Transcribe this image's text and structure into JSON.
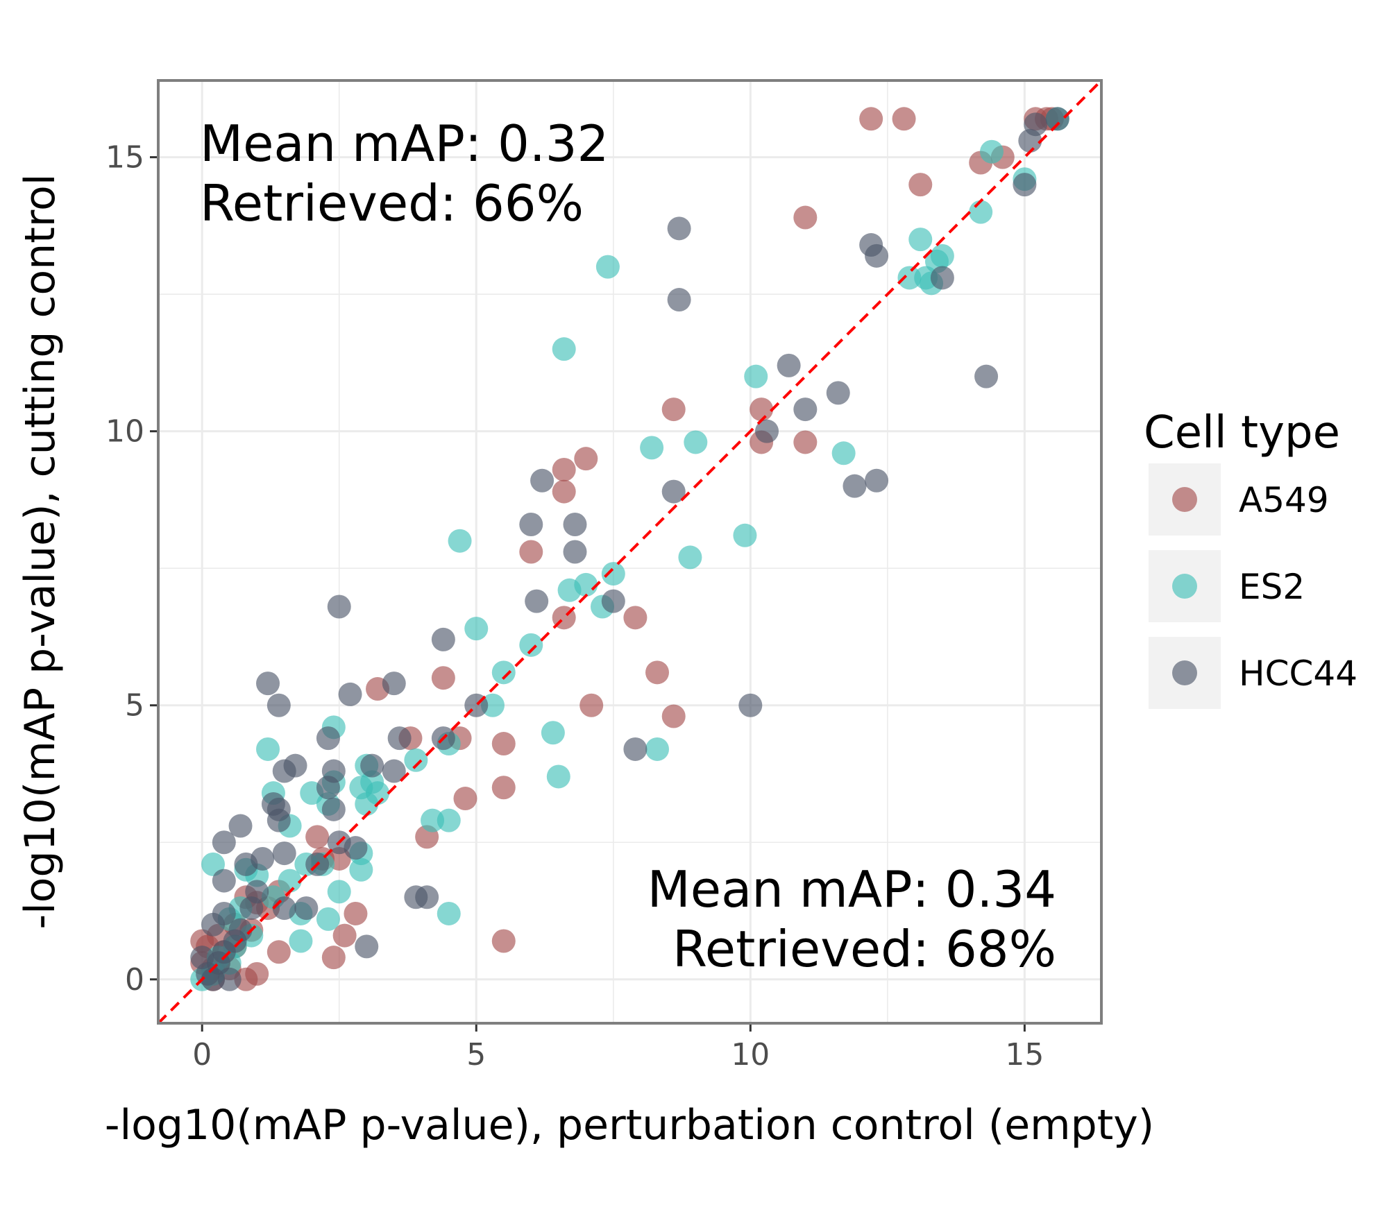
{
  "chart_data": {
    "type": "scatter",
    "xlabel": "-log10(mAP p-value), perturbation control (empty)",
    "ylabel": "-log10(mAP p-value), cutting control",
    "xlim": [
      -0.8,
      16.4
    ],
    "ylim": [
      -0.8,
      16.4
    ],
    "x_ticks": [
      0,
      5,
      10,
      15
    ],
    "y_ticks": [
      0,
      5,
      10,
      15
    ],
    "grid": true,
    "reference_line": {
      "type": "identity",
      "color": "#ff0000",
      "style": "dashed"
    },
    "annotations": {
      "top_left": {
        "line1": "Mean mAP: 0.32",
        "line2": "Retrieved: 66%"
      },
      "bottom_right": {
        "line1": "Mean mAP: 0.34",
        "line2": "Retrieved: 68%"
      }
    },
    "legend": {
      "title": "Cell type",
      "position": "right"
    },
    "series": [
      {
        "name": "A549",
        "color": "#a34a4a",
        "points": [
          [
            12.2,
            15.7
          ],
          [
            12.8,
            15.7
          ],
          [
            15.2,
            15.7
          ],
          [
            15.4,
            15.7
          ],
          [
            15.5,
            15.7
          ],
          [
            13.1,
            14.5
          ],
          [
            14.2,
            14.9
          ],
          [
            14.6,
            15.0
          ],
          [
            11.0,
            13.9
          ],
          [
            8.6,
            10.4
          ],
          [
            10.2,
            10.4
          ],
          [
            10.2,
            9.8
          ],
          [
            11.0,
            9.8
          ],
          [
            7.0,
            9.5
          ],
          [
            6.6,
            9.3
          ],
          [
            6.6,
            8.9
          ],
          [
            6.0,
            7.8
          ],
          [
            6.6,
            6.6
          ],
          [
            7.9,
            6.6
          ],
          [
            8.3,
            5.6
          ],
          [
            4.4,
            5.5
          ],
          [
            3.2,
            5.3
          ],
          [
            7.1,
            5.0
          ],
          [
            8.6,
            4.8
          ],
          [
            3.8,
            4.4
          ],
          [
            4.7,
            4.4
          ],
          [
            5.5,
            4.3
          ],
          [
            5.5,
            3.5
          ],
          [
            4.8,
            3.3
          ],
          [
            4.1,
            2.6
          ],
          [
            2.1,
            2.6
          ],
          [
            2.2,
            2.2
          ],
          [
            2.5,
            2.2
          ],
          [
            1.4,
            1.6
          ],
          [
            1.0,
            1.4
          ],
          [
            2.8,
            1.2
          ],
          [
            2.6,
            0.8
          ],
          [
            2.4,
            0.4
          ],
          [
            5.5,
            0.7
          ],
          [
            1.4,
            0.5
          ],
          [
            0.9,
            0.9
          ],
          [
            0.6,
            0.6
          ],
          [
            0.4,
            0.5
          ],
          [
            0.3,
            0.3
          ],
          [
            0.2,
            0.2
          ],
          [
            0.1,
            0.6
          ],
          [
            0.0,
            0.7
          ],
          [
            0.0,
            0.3
          ],
          [
            0.5,
            0.2
          ],
          [
            0.8,
            0.0
          ],
          [
            1.0,
            0.1
          ],
          [
            0.2,
            0.0
          ],
          [
            0.6,
            1.0
          ],
          [
            0.3,
            0.8
          ],
          [
            1.2,
            1.3
          ],
          [
            0.8,
            1.5
          ]
        ]
      },
      {
        "name": "ES2",
        "color": "#3bbfb6",
        "points": [
          [
            15.6,
            15.7
          ],
          [
            14.4,
            15.1
          ],
          [
            15.0,
            14.6
          ],
          [
            14.2,
            14.0
          ],
          [
            13.1,
            13.5
          ],
          [
            13.5,
            13.2
          ],
          [
            13.4,
            13.1
          ],
          [
            12.9,
            12.8
          ],
          [
            13.2,
            12.8
          ],
          [
            13.3,
            12.7
          ],
          [
            7.4,
            13.0
          ],
          [
            6.6,
            11.5
          ],
          [
            10.1,
            11.0
          ],
          [
            8.2,
            9.7
          ],
          [
            9.0,
            9.8
          ],
          [
            11.7,
            9.6
          ],
          [
            9.9,
            8.1
          ],
          [
            8.9,
            7.7
          ],
          [
            4.7,
            8.0
          ],
          [
            7.0,
            7.2
          ],
          [
            7.5,
            7.4
          ],
          [
            7.3,
            6.8
          ],
          [
            6.7,
            7.1
          ],
          [
            5.0,
            6.4
          ],
          [
            6.0,
            6.1
          ],
          [
            5.5,
            5.6
          ],
          [
            5.3,
            5.0
          ],
          [
            6.4,
            4.5
          ],
          [
            8.3,
            4.2
          ],
          [
            6.5,
            3.7
          ],
          [
            4.5,
            4.3
          ],
          [
            3.9,
            4.0
          ],
          [
            3.0,
            3.9
          ],
          [
            3.1,
            3.6
          ],
          [
            3.2,
            3.4
          ],
          [
            3.0,
            3.2
          ],
          [
            2.9,
            3.5
          ],
          [
            2.4,
            3.6
          ],
          [
            2.4,
            4.6
          ],
          [
            1.2,
            4.2
          ],
          [
            1.3,
            3.4
          ],
          [
            1.6,
            2.8
          ],
          [
            2.0,
            3.4
          ],
          [
            2.3,
            3.2
          ],
          [
            4.2,
            2.9
          ],
          [
            4.5,
            2.9
          ],
          [
            2.9,
            2.0
          ],
          [
            2.9,
            2.3
          ],
          [
            2.2,
            2.1
          ],
          [
            1.9,
            2.1
          ],
          [
            2.5,
            1.6
          ],
          [
            2.3,
            1.1
          ],
          [
            1.8,
            1.2
          ],
          [
            1.6,
            1.8
          ],
          [
            1.8,
            0.7
          ],
          [
            4.5,
            1.2
          ],
          [
            0.2,
            2.1
          ],
          [
            0.8,
            2.0
          ],
          [
            1.0,
            1.9
          ],
          [
            1.3,
            1.5
          ],
          [
            0.7,
            1.3
          ],
          [
            0.5,
            1.1
          ],
          [
            0.9,
            0.8
          ],
          [
            0.6,
            0.6
          ],
          [
            0.3,
            0.4
          ],
          [
            0.0,
            0.0
          ],
          [
            0.2,
            0.1
          ],
          [
            0.5,
            0.3
          ]
        ]
      },
      {
        "name": "HCC44",
        "color": "#4a5468",
        "points": [
          [
            15.6,
            15.7
          ],
          [
            15.2,
            15.6
          ],
          [
            15.1,
            15.3
          ],
          [
            15.0,
            14.5
          ],
          [
            12.2,
            13.4
          ],
          [
            12.3,
            13.2
          ],
          [
            13.5,
            12.8
          ],
          [
            8.7,
            13.7
          ],
          [
            8.7,
            12.4
          ],
          [
            10.7,
            11.2
          ],
          [
            14.3,
            11.0
          ],
          [
            11.6,
            10.7
          ],
          [
            11.0,
            10.4
          ],
          [
            10.3,
            10.0
          ],
          [
            8.6,
            8.9
          ],
          [
            11.9,
            9.0
          ],
          [
            12.3,
            9.1
          ],
          [
            6.2,
            9.1
          ],
          [
            6.0,
            8.3
          ],
          [
            6.8,
            8.3
          ],
          [
            6.8,
            7.8
          ],
          [
            6.1,
            6.9
          ],
          [
            7.5,
            6.9
          ],
          [
            4.4,
            6.2
          ],
          [
            2.5,
            6.8
          ],
          [
            2.7,
            5.2
          ],
          [
            3.5,
            5.4
          ],
          [
            1.2,
            5.4
          ],
          [
            1.4,
            5.0
          ],
          [
            5.0,
            5.0
          ],
          [
            10.0,
            5.0
          ],
          [
            7.9,
            4.2
          ],
          [
            3.6,
            4.4
          ],
          [
            4.4,
            4.4
          ],
          [
            2.3,
            4.4
          ],
          [
            1.5,
            3.8
          ],
          [
            1.7,
            3.9
          ],
          [
            2.4,
            3.8
          ],
          [
            3.5,
            3.8
          ],
          [
            3.1,
            3.9
          ],
          [
            2.3,
            3.5
          ],
          [
            2.4,
            3.1
          ],
          [
            1.4,
            3.1
          ],
          [
            1.3,
            3.2
          ],
          [
            1.4,
            2.9
          ],
          [
            0.7,
            2.8
          ],
          [
            0.4,
            2.5
          ],
          [
            2.5,
            2.5
          ],
          [
            2.8,
            2.4
          ],
          [
            1.5,
            2.3
          ],
          [
            1.1,
            2.2
          ],
          [
            0.8,
            2.1
          ],
          [
            2.1,
            2.1
          ],
          [
            0.4,
            1.8
          ],
          [
            1.0,
            1.6
          ],
          [
            1.5,
            1.3
          ],
          [
            1.9,
            1.3
          ],
          [
            3.9,
            1.5
          ],
          [
            4.1,
            1.5
          ],
          [
            3.0,
            0.6
          ],
          [
            0.4,
            1.2
          ],
          [
            0.2,
            1.0
          ],
          [
            0.6,
            0.7
          ],
          [
            0.4,
            0.5
          ],
          [
            0.3,
            0.3
          ],
          [
            0.1,
            0.1
          ],
          [
            0.0,
            0.4
          ],
          [
            0.5,
            0.0
          ],
          [
            0.2,
            0.0
          ],
          [
            0.7,
            0.9
          ],
          [
            0.9,
            1.3
          ]
        ]
      }
    ]
  }
}
